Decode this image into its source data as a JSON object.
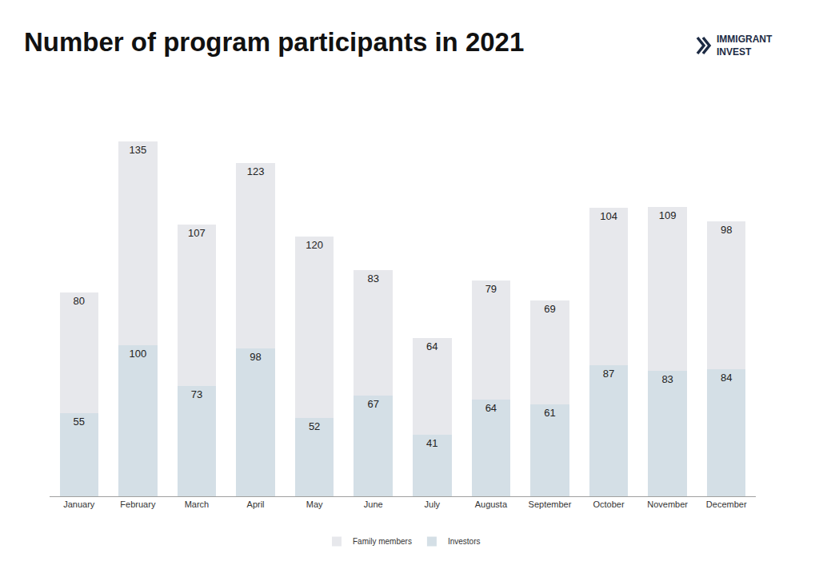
{
  "chart_data": {
    "type": "bar",
    "title": "Number of program participants in 2021",
    "logo": [
      "IMMIGRANT",
      "INVEST"
    ],
    "categories": [
      "January",
      "February",
      "March",
      "April",
      "May",
      "June",
      "July",
      "Augusta",
      "September",
      "October",
      "November",
      "December"
    ],
    "series": [
      {
        "name": "Investors",
        "color": "#d4dfe6",
        "values": [
          55,
          100,
          73,
          98,
          52,
          67,
          41,
          64,
          61,
          87,
          83,
          84
        ]
      },
      {
        "name": "Family members",
        "color": "#e7e8ec",
        "values": [
          80,
          135,
          107,
          123,
          120,
          83,
          64,
          79,
          69,
          104,
          109,
          98
        ]
      }
    ],
    "stacked": true,
    "data_labels": true,
    "grid": false,
    "legend": "bottom",
    "tick_labels": "x"
  }
}
